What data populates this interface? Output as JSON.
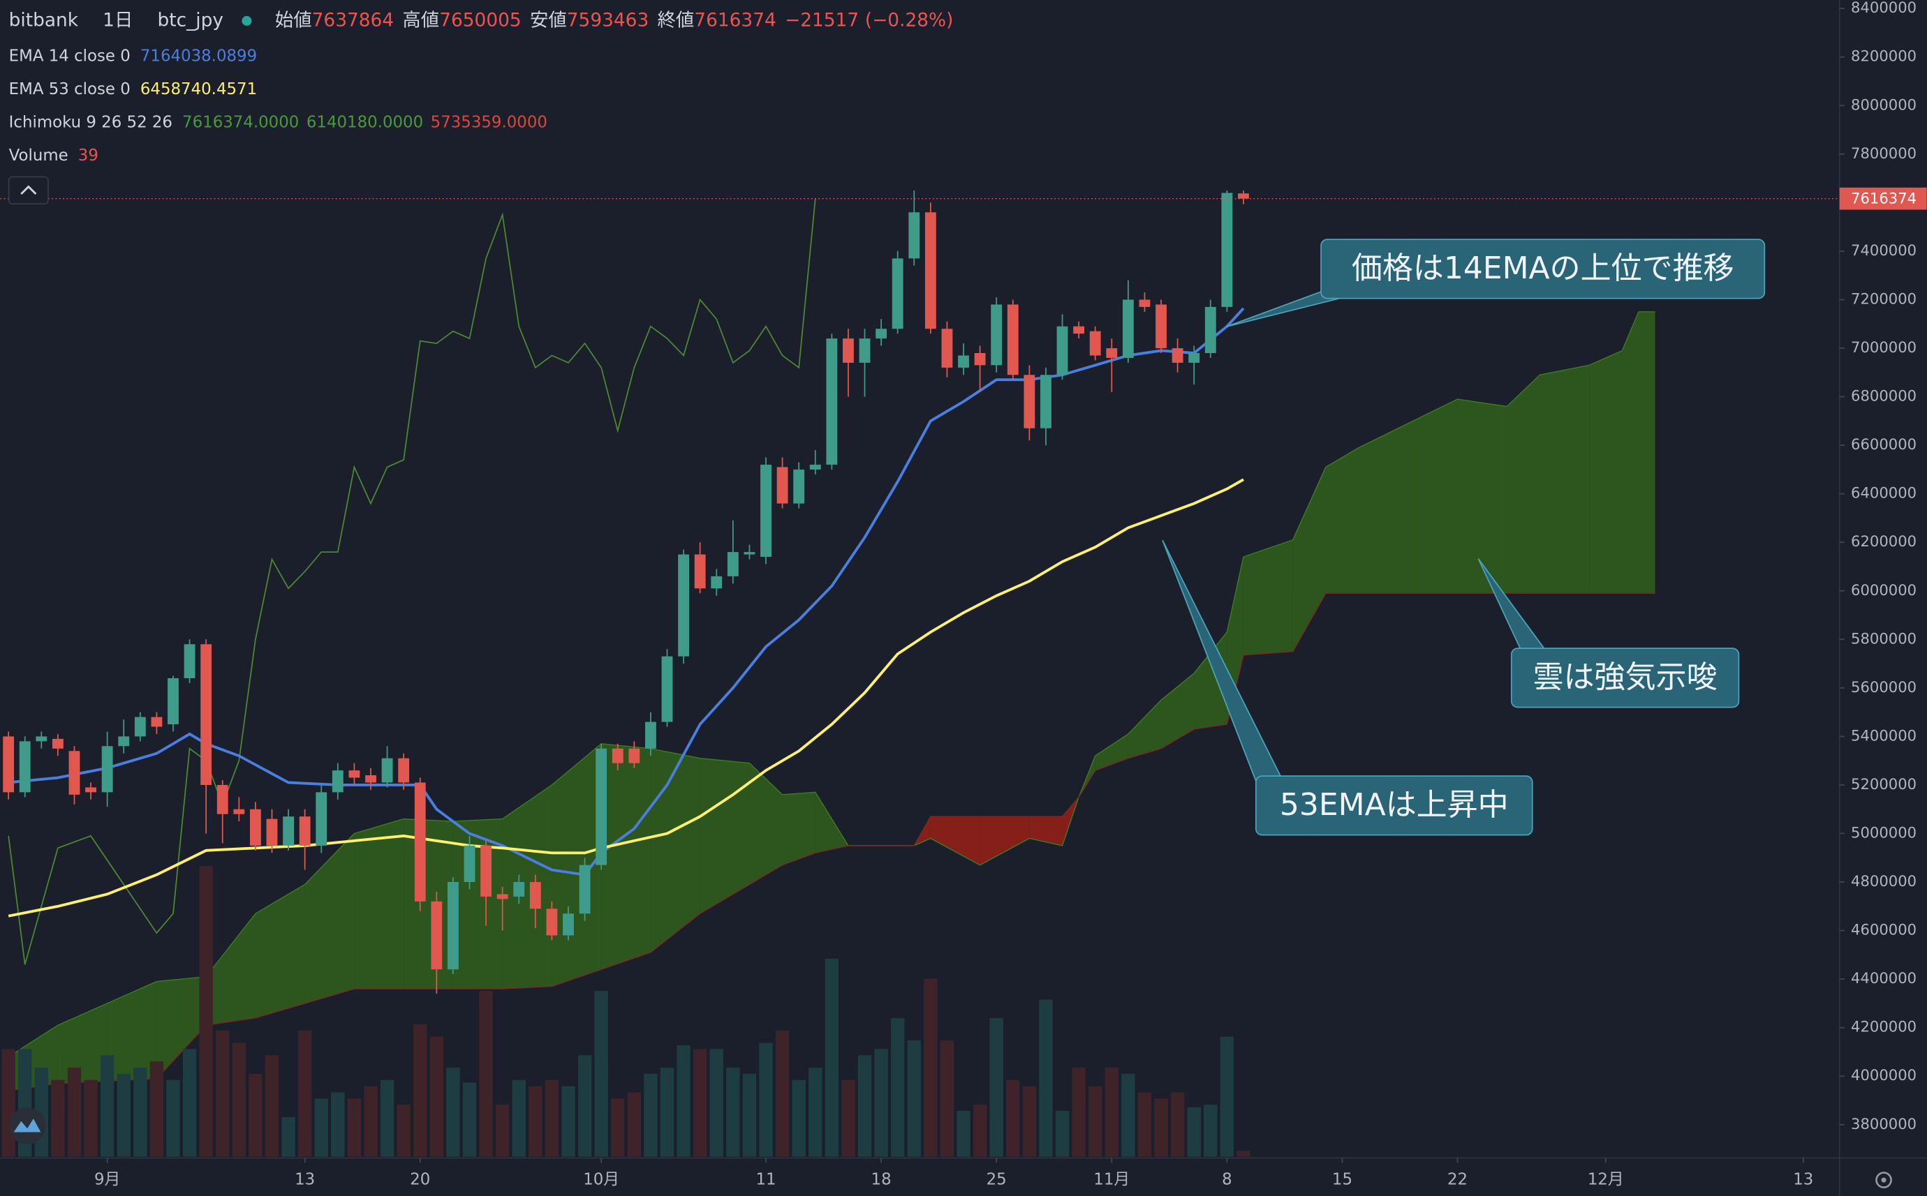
{
  "chart_data": {
    "type": "candlestick",
    "header": {
      "symbol": [
        "bitbank",
        "1日",
        "btc_jpy"
      ],
      "ohlc_labels": [
        "始値",
        "高値",
        "安値",
        "終値"
      ],
      "change": {
        "value": -21517,
        "label": "−21517"
      },
      "change_pct": {
        "value": -0.28,
        "label": "(−0.28%)"
      }
    },
    "xlim": [
      -0.5,
      111.2
    ],
    "xticks": [
      {
        "value": 6,
        "label": "9月"
      },
      {
        "value": 18,
        "label": "13"
      },
      {
        "value": 25,
        "label": "20"
      },
      {
        "value": 36,
        "label": "10月"
      },
      {
        "value": 46,
        "label": "11"
      },
      {
        "value": 53,
        "label": "18"
      },
      {
        "value": 60,
        "label": "25"
      },
      {
        "value": 67,
        "label": "11月"
      },
      {
        "value": 74,
        "label": "8"
      },
      {
        "value": 81,
        "label": "15"
      },
      {
        "value": 88,
        "label": "22"
      },
      {
        "value": 97,
        "label": "12月"
      },
      {
        "value": 109,
        "label": "13"
      }
    ],
    "ylim": [
      3668000,
      8435000
    ],
    "yticks": [
      8400000,
      8200000,
      8000000,
      7800000,
      7600000,
      7400000,
      7200000,
      7000000,
      6800000,
      6600000,
      6400000,
      6200000,
      6000000,
      5800000,
      5600000,
      5400000,
      5200000,
      5000000,
      4800000,
      4600000,
      4400000,
      4200000,
      4000000,
      3800000
    ],
    "y2lim": [
      0,
      7480
    ],
    "grid": false,
    "candles": {
      "up_color": "#3f9c8b",
      "down_color": "#e0584f",
      "x": [
        0,
        1,
        2,
        3,
        4,
        5,
        6,
        7,
        8,
        9,
        10,
        11,
        12,
        13,
        14,
        15,
        16,
        17,
        18,
        19,
        20,
        21,
        22,
        23,
        24,
        25,
        26,
        27,
        28,
        29,
        30,
        31,
        32,
        33,
        34,
        35,
        36,
        37,
        38,
        39,
        40,
        41,
        42,
        43,
        44,
        45,
        46,
        47,
        48,
        49,
        50,
        51,
        52,
        53,
        54,
        55,
        56,
        57,
        58,
        59,
        60,
        61,
        62,
        63,
        64,
        65,
        66,
        67,
        68,
        69,
        70,
        71,
        72,
        73,
        74,
        75
      ],
      "open": [
        5400000,
        5170000,
        5380000,
        5390000,
        5340000,
        5190000,
        5170000,
        5360000,
        5400000,
        5480000,
        5450000,
        5640000,
        5780000,
        5200000,
        5100000,
        5100000,
        5060000,
        4950000,
        5070000,
        4950000,
        5170000,
        5260000,
        5240000,
        5210000,
        5310000,
        5210000,
        4720000,
        4440000,
        4800000,
        4950000,
        4750000,
        4740000,
        4800000,
        4690000,
        4580000,
        4670000,
        4870000,
        5350000,
        5350000,
        5350000,
        5460000,
        5730000,
        6150000,
        6010000,
        6060000,
        6150000,
        6140000,
        6510000,
        6360000,
        6500000,
        6520000,
        7040000,
        6940000,
        7040000,
        7080000,
        7370000,
        7560000,
        7080000,
        6920000,
        6980000,
        6930000,
        7180000,
        6890000,
        6670000,
        6890000,
        7090000,
        7070000,
        7000000,
        6960000,
        7200000,
        7180000,
        7000000,
        6940000,
        6980000,
        7170000,
        7637864
      ],
      "high": [
        5420000,
        5400000,
        5420000,
        5410000,
        5360000,
        5210000,
        5420000,
        5470000,
        5500000,
        5500000,
        5650000,
        5800000,
        5800000,
        5220000,
        5150000,
        5130000,
        5100000,
        5100000,
        5100000,
        5200000,
        5290000,
        5290000,
        5270000,
        5360000,
        5330000,
        5230000,
        4760000,
        4820000,
        4990000,
        4970000,
        4780000,
        4830000,
        4830000,
        4720000,
        4700000,
        4900000,
        5370000,
        5370000,
        5380000,
        5500000,
        5760000,
        6170000,
        6200000,
        6090000,
        6290000,
        6190000,
        6550000,
        6550000,
        6530000,
        6580000,
        7060000,
        7080000,
        7080000,
        7120000,
        7400000,
        7650000,
        7600000,
        7110000,
        7020000,
        7010000,
        7210000,
        7200000,
        6930000,
        6920000,
        7140000,
        7110000,
        7090000,
        7040000,
        7280000,
        7230000,
        7200000,
        7040000,
        7010000,
        7200000,
        7650000,
        7650005
      ],
      "low": [
        5140000,
        5150000,
        5350000,
        5320000,
        5120000,
        5140000,
        5110000,
        5330000,
        5380000,
        5410000,
        5420000,
        5620000,
        5000000,
        4960000,
        5050000,
        4930000,
        4920000,
        4930000,
        4850000,
        4920000,
        5140000,
        5200000,
        5180000,
        5190000,
        5180000,
        4680000,
        4340000,
        4420000,
        4770000,
        4620000,
        4600000,
        4710000,
        4610000,
        4560000,
        4560000,
        4640000,
        4850000,
        5260000,
        5270000,
        5320000,
        5440000,
        5700000,
        5990000,
        5980000,
        6030000,
        6130000,
        6110000,
        6340000,
        6340000,
        6480000,
        6500000,
        6800000,
        6800000,
        7010000,
        7060000,
        7340000,
        7060000,
        6880000,
        6890000,
        6820000,
        6900000,
        6870000,
        6620000,
        6600000,
        6870000,
        7040000,
        6950000,
        6820000,
        6940000,
        7150000,
        6980000,
        6900000,
        6850000,
        6960000,
        7150000,
        7593463
      ],
      "close": [
        5170000,
        5380000,
        5400000,
        5350000,
        5160000,
        5170000,
        5360000,
        5400000,
        5480000,
        5440000,
        5640000,
        5780000,
        5200000,
        5080000,
        5080000,
        4950000,
        4950000,
        5070000,
        4950000,
        5170000,
        5260000,
        5230000,
        5210000,
        5310000,
        5210000,
        4720000,
        4440000,
        4800000,
        4950000,
        4740000,
        4730000,
        4800000,
        4690000,
        4580000,
        4670000,
        4870000,
        5350000,
        5290000,
        5290000,
        5460000,
        5730000,
        6150000,
        6010000,
        6060000,
        6160000,
        6160000,
        6520000,
        6360000,
        6500000,
        6520000,
        7040000,
        6940000,
        7040000,
        7080000,
        7370000,
        7560000,
        7080000,
        6920000,
        6970000,
        6930000,
        7180000,
        6890000,
        6670000,
        6890000,
        7090000,
        7060000,
        6970000,
        6960000,
        7200000,
        7170000,
        7000000,
        6940000,
        6980000,
        7170000,
        7640000,
        7616374
      ]
    },
    "indicators": [
      {
        "name": "EMA 14 close 0",
        "color": "#4a7fe0",
        "x": [
          0,
          3,
          6,
          9,
          11,
          12,
          14,
          17,
          20,
          23,
          25,
          26,
          28,
          30,
          33,
          35,
          36,
          38,
          40,
          42,
          44,
          46,
          48,
          50,
          52,
          54,
          56,
          58,
          60,
          62,
          64,
          66,
          68,
          70,
          72,
          74,
          75
        ],
        "values": [
          5210000,
          5230000,
          5270000,
          5330000,
          5410000,
          5370000,
          5320000,
          5210000,
          5200000,
          5200000,
          5200000,
          5100000,
          5000000,
          4950000,
          4850000,
          4830000,
          4920000,
          5020000,
          5200000,
          5450000,
          5600000,
          5770000,
          5880000,
          6020000,
          6220000,
          6450000,
          6700000,
          6780000,
          6870000,
          6870000,
          6890000,
          6930000,
          6970000,
          6990000,
          6980000,
          7090000,
          7164038.0899
        ]
      },
      {
        "name": "EMA 53 close 0",
        "color": "#fff06b",
        "x": [
          0,
          3,
          6,
          9,
          12,
          15,
          18,
          21,
          24,
          26,
          28,
          30,
          33,
          35,
          36,
          38,
          40,
          42,
          44,
          46,
          48,
          50,
          52,
          54,
          56,
          58,
          60,
          62,
          64,
          66,
          68,
          70,
          72,
          74,
          75
        ],
        "values": [
          4660000,
          4700000,
          4750000,
          4830000,
          4930000,
          4940000,
          4950000,
          4970000,
          4990000,
          4970000,
          4950000,
          4940000,
          4920000,
          4920000,
          4940000,
          4970000,
          5000000,
          5070000,
          5160000,
          5260000,
          5340000,
          5450000,
          5580000,
          5740000,
          5830000,
          5910000,
          5980000,
          6040000,
          6120000,
          6180000,
          6260000,
          6310000,
          6360000,
          6420000,
          6458740.4571
        ]
      },
      {
        "name": "Ichimoku 9 26 52 26",
        "cloud_colors": [
          "#2d5a1c",
          "#8c1f18"
        ],
        "lines": [
          {
            "color": "#4b8a31",
            "legend": "7616374.0000",
            "x": [
              0,
              1,
              3,
              5,
              7,
              9,
              10,
              11,
              12,
              13,
              14,
              15,
              16,
              17,
              18,
              19,
              20,
              21,
              22,
              23,
              24,
              25,
              26,
              27,
              28,
              29,
              30,
              31,
              32,
              33,
              34,
              35,
              36,
              37,
              38,
              39,
              40,
              41,
              42,
              43,
              44,
              45,
              46,
              47,
              48,
              49
            ],
            "values": [
              4990000,
              4460000,
              4940000,
              4990000,
              4790000,
              4590000,
              4670000,
              5350000,
              5300000,
              5120000,
              5300000,
              5800000,
              6130000,
              6010000,
              6080000,
              6160000,
              6160000,
              6510000,
              6360000,
              6510000,
              6540000,
              7030000,
              7020000,
              7070000,
              7040000,
              7370000,
              7550000,
              7090000,
              6920000,
              6970000,
              6940000,
              7020000,
              6920000,
              6660000,
              6920000,
              7090000,
              7040000,
              6970000,
              7200000,
              7120000,
              6940000,
              6990000,
              7090000,
              6970000,
              6920000,
              7616374
            ]
          },
          {
            "color": "#4a9a3a",
            "legend": "6140180.0000",
            "x": [
              0,
              3,
              6,
              9,
              12,
              15,
              18,
              21,
              24,
              27,
              30,
              33,
              36,
              39,
              42,
              45,
              47,
              49,
              51,
              55,
              56,
              59,
              62,
              64,
              65,
              66,
              68,
              70,
              72,
              74,
              75,
              78,
              80,
              82,
              85,
              88,
              91,
              93,
              96,
              98,
              99,
              100
            ],
            "values": [
              4080000,
              4210000,
              4300000,
              4390000,
              4410000,
              4670000,
              4790000,
              5000000,
              5060000,
              5050000,
              5060000,
              5200000,
              5370000,
              5350000,
              5310000,
              5290000,
              5160000,
              5170000,
              4950000,
              4950000,
              4980000,
              4870000,
              4980000,
              4950000,
              5150000,
              5320000,
              5410000,
              5550000,
              5660000,
              5830000,
              6140180,
              6210000,
              6510000,
              6590000,
              6690000,
              6790000,
              6760000,
              6890000,
              6930000,
              6990000,
              7150000,
              7150000
            ]
          },
          {
            "color": "#e0463a",
            "legend": "5735359.0000",
            "x": [
              0,
              3,
              6,
              9,
              12,
              15,
              18,
              21,
              24,
              27,
              30,
              33,
              36,
              39,
              42,
              45,
              47,
              49,
              51,
              55,
              56,
              59,
              62,
              64,
              65,
              66,
              68,
              70,
              72,
              74,
              75,
              78,
              80,
              82,
              85,
              88,
              91,
              93,
              96,
              98,
              99,
              100
            ],
            "values": [
              3940000,
              3970000,
              3980000,
              3990000,
              4210000,
              4240000,
              4300000,
              4360000,
              4360000,
              4360000,
              4360000,
              4370000,
              4440000,
              4510000,
              4670000,
              4790000,
              4870000,
              4920000,
              4950000,
              4950000,
              5070000,
              5070000,
              5070000,
              5070000,
              5150000,
              5260000,
              5310000,
              5350000,
              5430000,
              5450000,
              5735359,
              5750000,
              5990000,
              5990000,
              5990000,
              5990000,
              5990000,
              5990000,
              5990000,
              5990000,
              5990000,
              5990000
            ]
          }
        ]
      },
      {
        "name": "Volume",
        "axis": "y2",
        "colors": [
          "#1e3d42",
          "#3e2329"
        ],
        "values": [
          696,
          696,
          576,
          496,
          576,
          496,
          656,
          536,
          576,
          616,
          496,
          696,
          1880,
          816,
          736,
          536,
          656,
          256,
          816,
          376,
          416,
          376,
          456,
          496,
          336,
          856,
          776,
          576,
          480,
          1072,
          336,
          496,
          456,
          496,
          456,
          656,
          1072,
          376,
          416,
          536,
          576,
          720,
          696,
          696,
          576,
          536,
          736,
          816,
          496,
          576,
          1280,
          496,
          656,
          696,
          896,
          752,
          1152,
          752,
          296,
          336,
          896,
          496,
          456,
          1016,
          296,
          576,
          456,
          576,
          536,
          416,
          376,
          416,
          320,
          336,
          776,
          39
        ]
      }
    ],
    "annotations": [
      "価格は14EMAの上位で推移",
      "雲は強気示唆",
      "53EMAは上昇中"
    ]
  }
}
